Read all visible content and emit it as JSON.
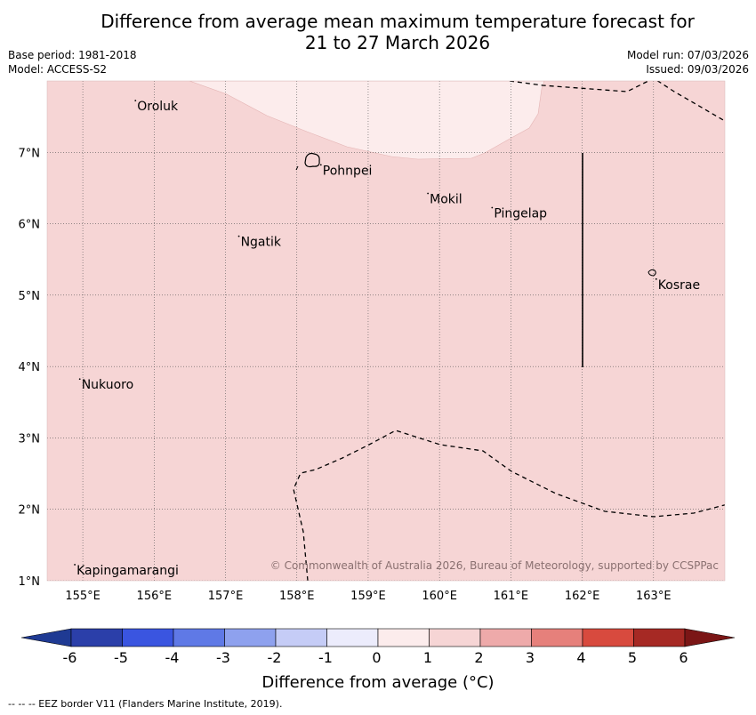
{
  "title": {
    "line1": "Difference from average mean maximum temperature forecast for",
    "line2": "21 to 27 March 2026"
  },
  "meta": {
    "base_period": "Base period: 1981-2018",
    "model": "Model: ACCESS-S2",
    "model_run": "Model run: 07/03/2026",
    "issued": "Issued: 09/03/2026"
  },
  "map": {
    "lon_labels": [
      "155°E",
      "156°E",
      "157°E",
      "158°E",
      "159°E",
      "160°E",
      "161°E",
      "162°E",
      "163°E"
    ],
    "lat_labels": [
      "7°N",
      "6°N",
      "5°N",
      "4°N",
      "3°N",
      "2°N",
      "1°N"
    ],
    "lon_values": [
      155,
      156,
      157,
      158,
      159,
      160,
      161,
      162,
      163
    ],
    "lat_values": [
      7,
      6,
      5,
      4,
      3,
      2,
      1
    ],
    "lon_range": [
      154.5,
      164.0
    ],
    "lat_range": [
      1.0,
      8.0
    ],
    "places": [
      {
        "name": "Oroluk",
        "lon": 155.75,
        "lat": 7.65
      },
      {
        "name": "Pohnpei",
        "lon": 158.35,
        "lat": 6.75
      },
      {
        "name": "Mokil",
        "lon": 159.85,
        "lat": 6.35
      },
      {
        "name": "Pingelap",
        "lon": 160.75,
        "lat": 6.15
      },
      {
        "name": "Ngatik",
        "lon": 157.2,
        "lat": 5.75
      },
      {
        "name": "Kosrae",
        "lon": 163.05,
        "lat": 5.15
      },
      {
        "name": "Nukuoro",
        "lon": 154.97,
        "lat": 3.75
      },
      {
        "name": "Kapingamarangi",
        "lon": 154.9,
        "lat": 1.15
      }
    ],
    "copyright": "© Commonwealth of Australia 2026, Bureau of Meteorology, supported by CCSPPac"
  },
  "colorbar": {
    "ticks": [
      "-6",
      "-5",
      "-4",
      "-3",
      "-2",
      "-1",
      "0",
      "1",
      "2",
      "3",
      "4",
      "5",
      "6"
    ],
    "colors": [
      "#1f3a93",
      "#2b3fa9",
      "#3a55e0",
      "#5f79e6",
      "#8ea1ee",
      "#c5ccf6",
      "#ececfc",
      "#fcecec",
      "#f6d5d5",
      "#eeaaaa",
      "#e6807b",
      "#d84a3e",
      "#a62924",
      "#7b1616"
    ],
    "title": "Difference from average (°C)"
  },
  "footer": "--  --  -- EEZ border V11 (Flanders Marine Institute, 2019)."
}
